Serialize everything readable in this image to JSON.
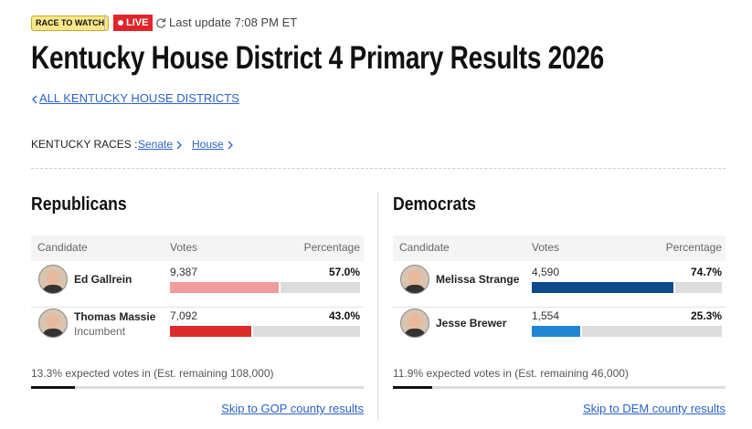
{
  "header": {
    "badge": "RACE TO WATCH",
    "live": "LIVE",
    "last_update": "Last update 7:08 PM ET",
    "title": "Kentucky House District 4 Primary Results 2026",
    "back_link": "ALL KENTUCKY HOUSE DISTRICTS"
  },
  "races_nav": {
    "label": "KENTUCKY RACES :",
    "links": [
      "Senate",
      "House"
    ]
  },
  "parties": [
    {
      "name": "Republicans",
      "columns": [
        "Candidate",
        "Votes",
        "Percentage"
      ],
      "candidates": [
        {
          "name": "Ed Gallrein",
          "votes": "9,387",
          "pct": {
            "value": 57.0,
            "label": "57.0%"
          },
          "color": "#f29b9b"
        },
        {
          "name": "Thomas Massie",
          "note": "Incumbent",
          "votes": "7,092",
          "pct": {
            "value": 43.0,
            "label": "43.0%"
          },
          "color": "#dc2b2b"
        }
      ],
      "expected": {
        "value": 13.3,
        "label": "13.3% expected votes in (Est. remaining 108,000)"
      },
      "county_link": "Skip to GOP county results"
    },
    {
      "name": "Democrats",
      "columns": [
        "Candidate",
        "Votes",
        "Percentage"
      ],
      "candidates": [
        {
          "name": "Melissa Strange",
          "votes": "4,590",
          "pct": {
            "value": 74.7,
            "label": "74.7%"
          },
          "color": "#0d4a8c"
        },
        {
          "name": "Jesse Brewer",
          "votes": "1,554",
          "pct": {
            "value": 25.3,
            "label": "25.3%"
          },
          "color": "#1f86d6"
        }
      ],
      "expected": {
        "value": 11.9,
        "label": "11.9% expected votes in (Est. remaining 46,000)"
      },
      "county_link": "Skip to DEM county results"
    }
  ]
}
